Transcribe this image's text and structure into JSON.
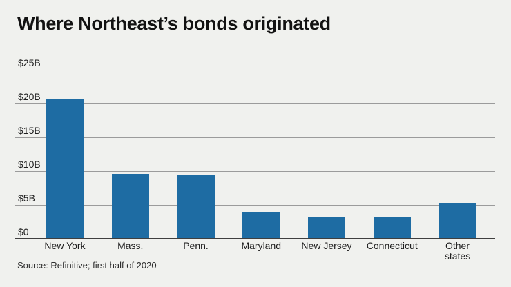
{
  "title": "Where Northeast’s bonds originated",
  "source_note": "Source: Refinitive; first half of 2020",
  "colors": {
    "background": "#f0f1ee",
    "bar": "#1e6ca3",
    "gridline": "#9b9b9b",
    "axis_line": "#3f3f3f",
    "title_text": "#121212",
    "label_text": "#1e1e1e",
    "source_text": "#2e2e2e"
  },
  "chart_data": {
    "type": "bar",
    "title": "Where Northeast’s bonds originated",
    "categories": [
      "New York",
      "Mass.",
      "Penn.",
      "Maryland",
      "New Jersey",
      "Connecticut",
      "Other states"
    ],
    "category_display": [
      "New York",
      "Mass.",
      "Penn.",
      "Maryland",
      "New Jersey",
      "Connecticut",
      "Other\nstates"
    ],
    "values": [
      20.6,
      9.5,
      9.3,
      3.8,
      3.2,
      3.2,
      5.2
    ],
    "unit": "USD billions",
    "xlabel": "",
    "ylabel": "",
    "ylim": [
      0,
      25
    ],
    "yticks": [
      {
        "value": 25,
        "label": "$25B"
      },
      {
        "value": 20,
        "label": "$20B"
      },
      {
        "value": 15,
        "label": "$15B"
      },
      {
        "value": 10,
        "label": "$10B"
      },
      {
        "value": 5,
        "label": "$5B"
      },
      {
        "value": 0,
        "label": "$0"
      }
    ],
    "grid": true,
    "legend": "none",
    "bar_color": "#1e6ca3",
    "source": "Source: Refinitive; first half of 2020"
  }
}
